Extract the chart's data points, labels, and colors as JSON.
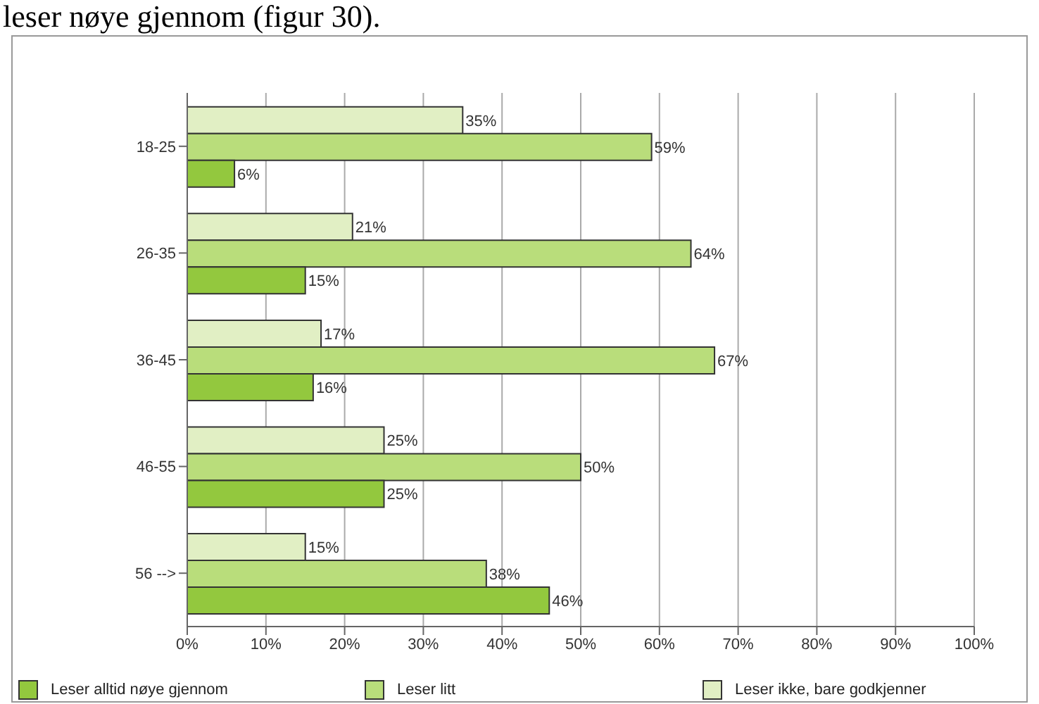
{
  "chart_data": {
    "type": "bar",
    "orientation": "horizontal",
    "annotations": [
      "leser nøye gjennom (figur 30)."
    ],
    "categories": [
      "18-25",
      "26-35",
      "36-45",
      "46-55",
      "56 -->"
    ],
    "series": [
      {
        "name": "Leser alltid nøye gjennom",
        "color": "#93c83e",
        "values": [
          6,
          15,
          16,
          25,
          46
        ],
        "value_labels": [
          "6%",
          "15%",
          "16%",
          "25%",
          "46%"
        ]
      },
      {
        "name": "Leser litt",
        "color": "#b9dd7b",
        "values": [
          59,
          64,
          67,
          50,
          38
        ],
        "value_labels": [
          "59%",
          "64%",
          "67%",
          "50%",
          "38%"
        ]
      },
      {
        "name": "Leser ikke, bare godkjenner",
        "color": "#e1efc4",
        "values": [
          35,
          21,
          17,
          25,
          15
        ],
        "value_labels": [
          "35%",
          "21%",
          "17%",
          "25%",
          "15%"
        ]
      }
    ],
    "xlim": [
      0,
      100
    ],
    "xticks": [
      {
        "value": 0,
        "label": "0%"
      },
      {
        "value": 10,
        "label": "10%"
      },
      {
        "value": 20,
        "label": "20%"
      },
      {
        "value": 30,
        "label": "30%"
      },
      {
        "value": 40,
        "label": "40%"
      },
      {
        "value": 50,
        "label": "50%"
      },
      {
        "value": 60,
        "label": "60%"
      },
      {
        "value": 70,
        "label": "70%"
      },
      {
        "value": 80,
        "label": "80%"
      },
      {
        "value": 90,
        "label": "90%"
      },
      {
        "value": 100,
        "label": "100%"
      }
    ],
    "grid": "x",
    "legend": "bottom"
  }
}
